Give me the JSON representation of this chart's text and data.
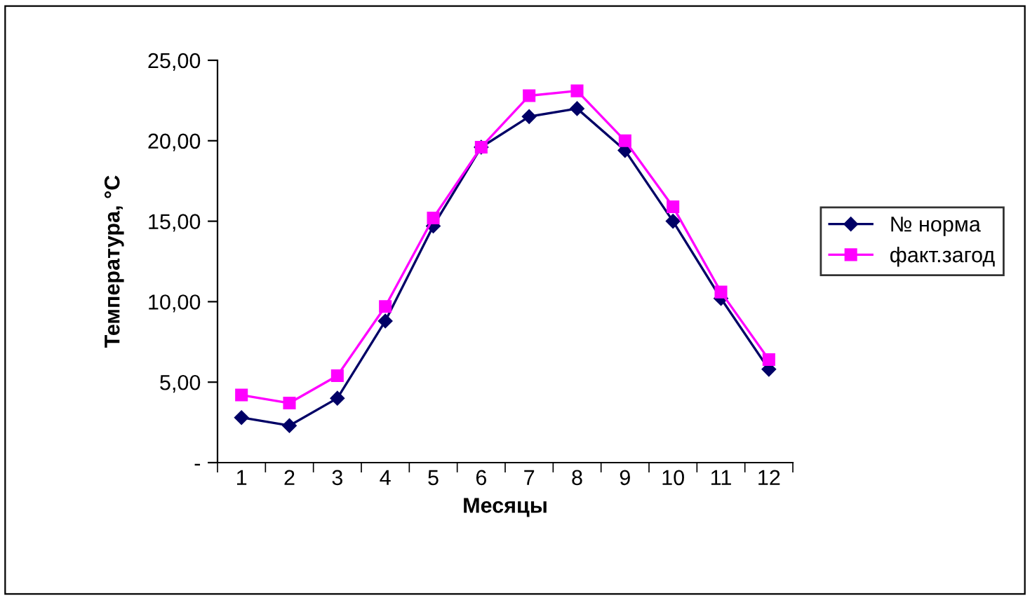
{
  "chart_data": {
    "type": "line",
    "xlabel": "Месяцы",
    "ylabel": "Температура, °C",
    "categories": [
      "1",
      "2",
      "3",
      "4",
      "5",
      "6",
      "7",
      "8",
      "9",
      "10",
      "11",
      "12"
    ],
    "series": [
      {
        "name": "№ норма",
        "color": "#000066",
        "marker": "diamond",
        "values": [
          2.8,
          2.3,
          4.0,
          8.8,
          14.7,
          19.6,
          21.5,
          22.0,
          19.4,
          15.0,
          10.2,
          5.8
        ]
      },
      {
        "name": "факт.загод",
        "color": "#ff00ff",
        "marker": "square",
        "values": [
          4.2,
          3.7,
          5.4,
          9.7,
          15.2,
          19.6,
          22.8,
          23.1,
          20.0,
          15.9,
          10.6,
          6.4
        ]
      }
    ],
    "ylim": [
      0,
      25
    ],
    "yticks": [
      {
        "value": 0,
        "label": "-"
      },
      {
        "value": 5,
        "label": "5,00"
      },
      {
        "value": 10,
        "label": "10,00"
      },
      {
        "value": 15,
        "label": "15,00"
      },
      {
        "value": 20,
        "label": "20,00"
      },
      {
        "value": 25,
        "label": "25,00"
      }
    ],
    "grid": false,
    "legend": "right",
    "line_style": "solid"
  }
}
